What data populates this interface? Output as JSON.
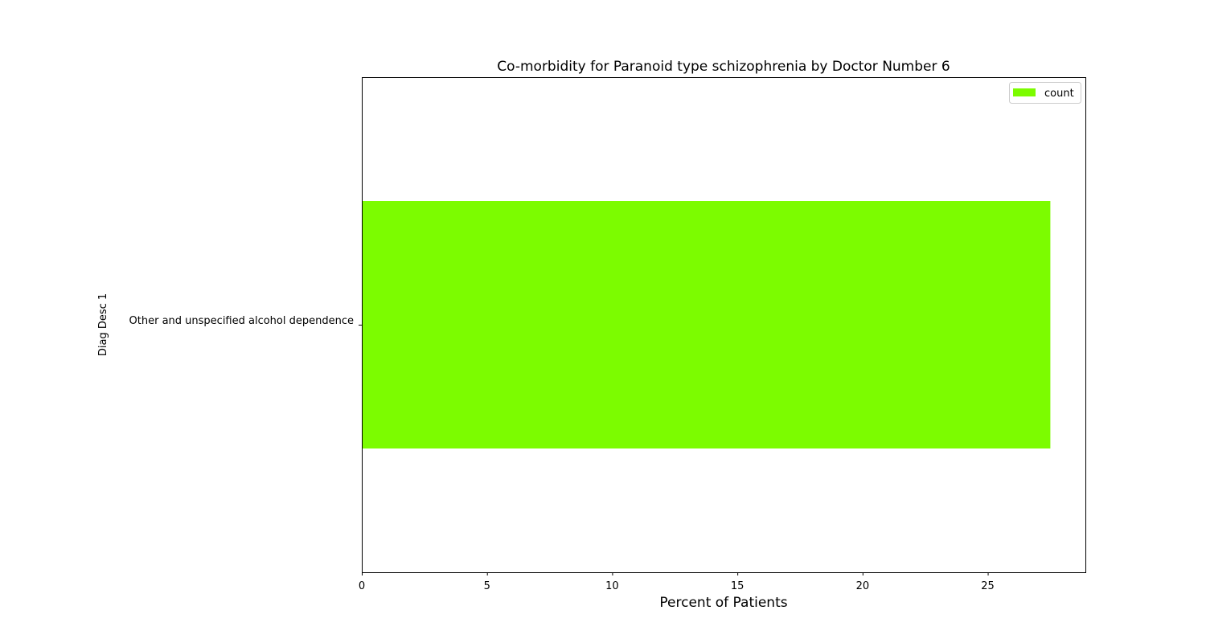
{
  "chart_data": {
    "type": "bar",
    "orientation": "horizontal",
    "title": "Co-morbidity for Paranoid type schizophrenia by Doctor Number 6",
    "xlabel": "Percent of Patients",
    "ylabel": "Diag Desc 1",
    "categories": [
      "Other and unspecified alcohol dependence"
    ],
    "series": [
      {
        "name": "count",
        "values": [
          27.5
        ],
        "color": "#7cfc00"
      }
    ],
    "xlim": [
      0,
      28.9
    ],
    "xticks": [
      0,
      5,
      10,
      15,
      20,
      25
    ],
    "legend": "top-right",
    "grid": false
  }
}
